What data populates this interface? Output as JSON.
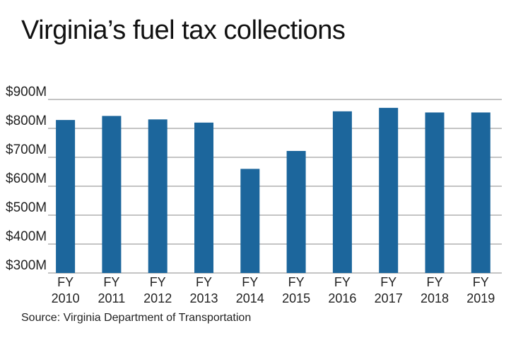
{
  "chart_data": {
    "type": "bar",
    "title": "Virginia’s fuel tax collections",
    "source": "Source: Virginia Department of Transportation",
    "categories": [
      [
        "FY",
        "2010"
      ],
      [
        "FY",
        "2011"
      ],
      [
        "FY",
        "2012"
      ],
      [
        "FY",
        "2013"
      ],
      [
        "FY",
        "2014"
      ],
      [
        "FY",
        "2015"
      ],
      [
        "FY",
        "2016"
      ],
      [
        "FY",
        "2017"
      ],
      [
        "FY",
        "2018"
      ],
      [
        "FY",
        "2019"
      ]
    ],
    "values": [
      829,
      843,
      831,
      820,
      660,
      722,
      859,
      871,
      855,
      855
    ],
    "unit": "$M",
    "ylim": [
      300,
      900
    ],
    "yticks": [
      300,
      400,
      500,
      600,
      700,
      800,
      900
    ],
    "ytick_labels": [
      "$300M",
      "$400M",
      "$500M",
      "$600M",
      "$700M",
      "$800M",
      "$900M"
    ],
    "grid": true,
    "bar_color": "#1c669c",
    "grid_color": "#b0b0b0"
  }
}
